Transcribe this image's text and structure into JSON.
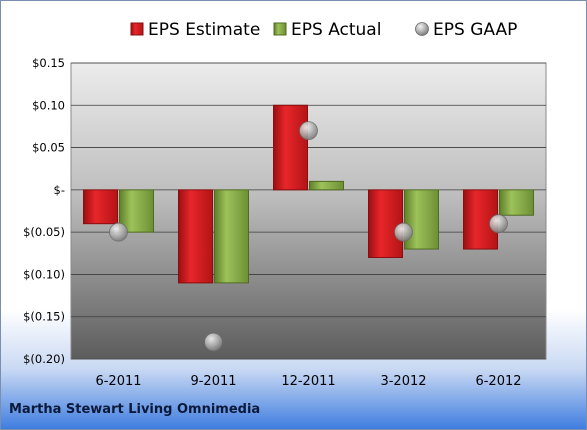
{
  "company": "Martha Stewart Living Omnimedia",
  "colors": {
    "estimate": "#d8181b",
    "estimate_dark": "#8a0d10",
    "actual": "#8db04c",
    "actual_dark": "#4f6b22",
    "gaap": "#a9a9a9",
    "grid": "#3c3c3c"
  },
  "chart_data": {
    "type": "bar",
    "categories": [
      "6-2011",
      "9-2011",
      "12-2011",
      "3-2012",
      "6-2012"
    ],
    "series": [
      {
        "name": "EPS Estimate",
        "kind": "bar",
        "values": [
          -0.04,
          -0.11,
          0.1,
          -0.08,
          -0.07
        ]
      },
      {
        "name": "EPS Actual",
        "kind": "bar",
        "values": [
          -0.05,
          -0.11,
          0.01,
          -0.07,
          -0.03
        ]
      },
      {
        "name": "EPS GAAP",
        "kind": "marker",
        "values": [
          -0.05,
          -0.18,
          0.07,
          -0.05,
          -0.04
        ]
      }
    ],
    "ylim": [
      -0.2,
      0.15
    ],
    "yticks": [
      0.15,
      0.1,
      0.05,
      0,
      -0.05,
      -0.1,
      -0.15,
      -0.2
    ],
    "ytick_labels": [
      "$0.15",
      "$0.10",
      "$0.05",
      "$-",
      "$(0.05)",
      "$(0.10)",
      "$(0.15)",
      "$(0.20)"
    ],
    "grid": true,
    "legend_position": "top"
  }
}
